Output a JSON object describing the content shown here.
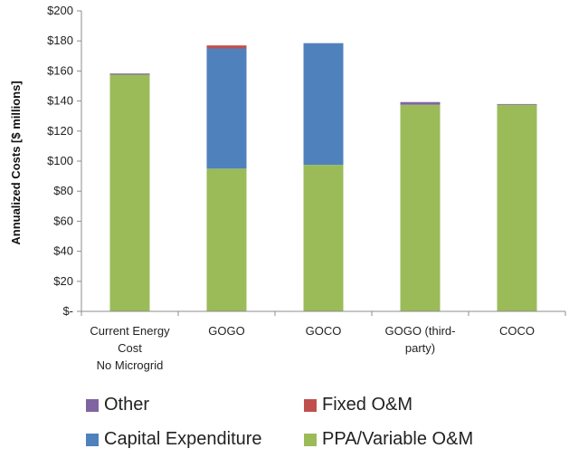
{
  "chart_data": {
    "type": "bar",
    "stacked": true,
    "ylabel": "Annualized Costs [$ millions]",
    "ylim": [
      0,
      200
    ],
    "yticks": [
      "$-",
      "$20",
      "$40",
      "$60",
      "$80",
      "$100",
      "$120",
      "$140",
      "$160",
      "$180",
      "$200"
    ],
    "categories": [
      [
        "Current Energy",
        "Cost",
        "No Microgrid"
      ],
      [
        "GOGO"
      ],
      [
        "GOCO"
      ],
      [
        "GOGO (third-",
        "party)"
      ],
      [
        "COCO"
      ]
    ],
    "series": [
      {
        "name": "PPA/Variable O&M",
        "color": "#9bbb59",
        "values": [
          157.5,
          95,
          97.5,
          137.5,
          137.5
        ]
      },
      {
        "name": "Capital Expenditure",
        "color": "#4f81bd",
        "values": [
          0,
          80,
          81,
          0,
          0
        ]
      },
      {
        "name": "Fixed O&M",
        "color": "#c0504d",
        "values": [
          0,
          2,
          0,
          0,
          0
        ]
      },
      {
        "name": "Other",
        "color": "#8064a2",
        "values": [
          0.8,
          0,
          0,
          1.8,
          0.5
        ]
      }
    ],
    "grid": false,
    "legend_position": "bottom"
  },
  "legend": {
    "items": [
      {
        "label": "Other",
        "color": "#8064a2"
      },
      {
        "label": "Fixed O&M",
        "color": "#c0504d"
      },
      {
        "label": "Capital Expenditure",
        "color": "#4f81bd"
      },
      {
        "label": "PPA/Variable O&M",
        "color": "#9bbb59"
      }
    ]
  }
}
